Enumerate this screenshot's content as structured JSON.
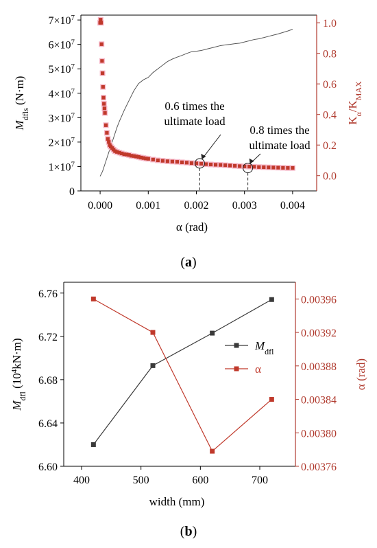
{
  "colors": {
    "black_series": "#3a3a3a",
    "red_series": "#c0392b",
    "marker_halo": "#f6b7c8",
    "right_axis": "#b03a2e",
    "axis": "#000000"
  },
  "chart_data": [
    {
      "panel_label": "a",
      "type": "scatter",
      "xlabel": "α (rad)",
      "ylabel_left": "M",
      "ylabel_left_sub": "dfls",
      "ylabel_left_unit": " (N·m)",
      "ylabel_right_main": "K",
      "ylabel_right_sub1": "α",
      "ylabel_right_mid": "/K",
      "ylabel_right_sub2": "MAX",
      "xlim": [
        -0.0004,
        0.0045
      ],
      "ylim_left": [
        0,
        72000000
      ],
      "ylim_right": [
        -0.1,
        1.05
      ],
      "x_ticks": [
        0.0,
        0.001,
        0.002,
        0.003,
        0.004
      ],
      "x_tick_labels": [
        "0.000",
        "0.001",
        "0.002",
        "0.003",
        "0.004"
      ],
      "y_left_ticks": [
        0,
        10000000,
        20000000,
        30000000,
        40000000,
        50000000,
        60000000,
        70000000
      ],
      "y_left_tick_labels": [
        {
          "m": "0",
          "e": ""
        },
        {
          "m": "1×10",
          "e": "7"
        },
        {
          "m": "2×10",
          "e": "7"
        },
        {
          "m": "3×10",
          "e": "7"
        },
        {
          "m": "4×10",
          "e": "7"
        },
        {
          "m": "5×10",
          "e": "7"
        },
        {
          "m": "6×10",
          "e": "7"
        },
        {
          "m": "7×10",
          "e": "7"
        }
      ],
      "y_right_ticks": [
        0.0,
        0.2,
        0.4,
        0.6,
        0.8,
        1.0
      ],
      "y_right_tick_labels": [
        "0.0",
        "0.2",
        "0.4",
        "0.6",
        "0.8",
        "1.0"
      ],
      "series": [
        {
          "axis": "left",
          "style": "line",
          "x": [
            0.0,
            5e-05,
            0.0001,
            0.00015,
            0.0002,
            0.00025,
            0.0003,
            0.00035,
            0.0004,
            0.0005,
            0.0006,
            0.0007,
            0.0008,
            0.0009,
            0.001,
            0.0011,
            0.0012,
            0.0013,
            0.0014,
            0.0015,
            0.0016,
            0.0017,
            0.0018,
            0.0019,
            0.002,
            0.0021,
            0.0022,
            0.0023,
            0.0024,
            0.0025,
            0.0026,
            0.0027,
            0.0028,
            0.0029,
            0.003,
            0.0031,
            0.0032,
            0.0033,
            0.0034,
            0.0035,
            0.0036,
            0.0037,
            0.0038,
            0.0039,
            0.004
          ],
          "y": [
            6000000,
            8000000,
            11000000,
            14000000,
            17000000,
            20000000,
            23000000,
            26000000,
            28500000,
            33000000,
            37000000,
            41000000,
            44000000,
            45500000,
            46500000,
            48500000,
            50000000,
            51500000,
            53000000,
            54000000,
            54800000,
            55500000,
            56300000,
            57000000,
            57200000,
            57500000,
            58000000,
            58500000,
            59000000,
            59500000,
            59800000,
            60000000,
            60300000,
            60500000,
            61000000,
            61500000,
            62000000,
            62300000,
            62800000,
            63300000,
            63800000,
            64300000,
            64900000,
            65500000,
            66200000
          ]
        },
        {
          "axis": "right",
          "style": "markers",
          "x": [
            0.0,
            1e-05,
            2e-05,
            3e-05,
            4e-05,
            5e-05,
            6e-05,
            7e-05,
            8e-05,
            9e-05,
            0.0001,
            0.00012,
            0.00014,
            0.00016,
            0.00018,
            0.0002,
            0.00022,
            0.00025,
            0.00028,
            0.00031,
            0.00035,
            0.0004,
            0.00045,
            0.0005,
            0.00055,
            0.0006,
            0.00065,
            0.0007,
            0.00075,
            0.0008,
            0.00085,
            0.0009,
            0.00095,
            0.001,
            0.0011,
            0.0012,
            0.0013,
            0.0014,
            0.0015,
            0.0016,
            0.0017,
            0.0018,
            0.0019,
            0.002,
            0.0021,
            0.0022,
            0.0023,
            0.0024,
            0.0025,
            0.0026,
            0.0027,
            0.0028,
            0.0029,
            0.003,
            0.0031,
            0.0032,
            0.0033,
            0.0034,
            0.0035,
            0.0036,
            0.0037,
            0.0038,
            0.0039,
            0.004
          ],
          "y": [
            1.0,
            1.02,
            1.0,
            0.86,
            0.75,
            0.67,
            0.58,
            0.51,
            0.47,
            0.44,
            0.41,
            0.33,
            0.28,
            0.24,
            0.22,
            0.2,
            0.19,
            0.18,
            0.17,
            0.16,
            0.155,
            0.15,
            0.145,
            0.14,
            0.138,
            0.135,
            0.13,
            0.128,
            0.125,
            0.122,
            0.118,
            0.115,
            0.112,
            0.11,
            0.105,
            0.1,
            0.097,
            0.094,
            0.092,
            0.09,
            0.087,
            0.085,
            0.082,
            0.08,
            0.078,
            0.075,
            0.073,
            0.071,
            0.07,
            0.068,
            0.066,
            0.064,
            0.062,
            0.06,
            0.059,
            0.058,
            0.056,
            0.055,
            0.054,
            0.053,
            0.052,
            0.051,
            0.05,
            0.05
          ]
        }
      ],
      "annotations": [
        {
          "text_lines": [
            "0.6 times the",
            "ultimate load"
          ],
          "x": 0.00207,
          "y_right": 0.08
        },
        {
          "text_lines": [
            "0.8 times the",
            "ultimate load"
          ],
          "x": 0.00307,
          "y_right": 0.05
        }
      ]
    },
    {
      "panel_label": "b",
      "type": "line",
      "xlabel": "width (mm)",
      "ylabel_left_main": "M",
      "ylabel_left_sub": "dfl",
      "ylabel_left_unit_a": " (10",
      "ylabel_left_unit_sup": "4",
      "ylabel_left_unit_b": "kN·m)",
      "ylabel_right": "α (rad)",
      "xlim": [
        370,
        760
      ],
      "ylim_left": [
        6.6,
        6.77
      ],
      "ylim_right": [
        0.00376,
        0.00398
      ],
      "x_ticks": [
        400,
        500,
        600,
        700
      ],
      "x_tick_labels": [
        "400",
        "500",
        "600",
        "700"
      ],
      "y_left_ticks": [
        6.6,
        6.64,
        6.68,
        6.72,
        6.76
      ],
      "y_left_tick_labels": [
        "6.60",
        "6.64",
        "6.68",
        "6.72",
        "6.76"
      ],
      "y_right_ticks": [
        0.00376,
        0.0038,
        0.00384,
        0.00388,
        0.00392,
        0.00396
      ],
      "y_right_tick_labels": [
        "0.00376",
        "0.00380",
        "0.00384",
        "0.00388",
        "0.00392",
        "0.00396"
      ],
      "categories": [
        420,
        520,
        620,
        720
      ],
      "series": [
        {
          "name_main": "M",
          "name_sub": "dfl",
          "axis": "left",
          "values": [
            6.62,
            6.693,
            6.723,
            6.754
          ]
        },
        {
          "name_main": "α",
          "name_sub": "",
          "axis": "right",
          "values": [
            0.00396,
            0.00392,
            0.003778,
            0.00384
          ]
        }
      ],
      "legend_position": "right"
    }
  ]
}
